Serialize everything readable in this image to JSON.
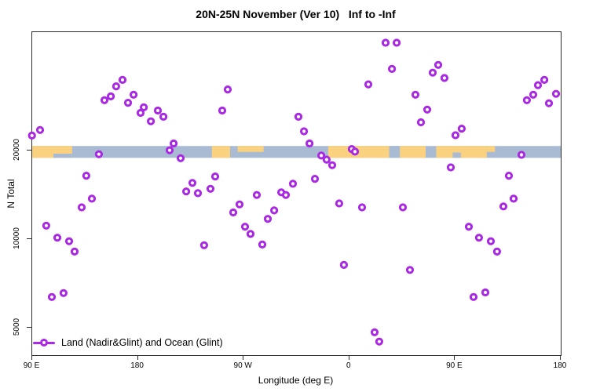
{
  "title": "20N-25N November (Ver 10)   Inf to -Inf",
  "axes": {
    "x_label": "Longitude (deg E)",
    "y_label": "N Total"
  },
  "legend": {
    "label": "Land (Nadir&Glint) and Ocean (Glint)"
  },
  "colors": {
    "marker": "#A928E3",
    "land": "#FAD27F",
    "ocean": "#A8BBD3",
    "axis": "#2b2b2b"
  },
  "chart_data": {
    "type": "scatter",
    "title": "20N-25N November (Ver 10)   Inf to -Inf",
    "xlabel": "Longitude (deg E)",
    "ylabel": "N Total",
    "x_axis": {
      "note": "extended longitude axis, degrees east of 90E start; wraps 90E>180>90W>0>90E>180",
      "range": [
        90,
        540
      ],
      "ticks": [
        {
          "v": 90,
          "label": "90 E"
        },
        {
          "v": 180,
          "label": "180"
        },
        {
          "v": 270,
          "label": "90 W"
        },
        {
          "v": 360,
          "label": "0"
        },
        {
          "v": 450,
          "label": "90 E"
        },
        {
          "v": 540,
          "label": "180"
        }
      ]
    },
    "y_axis": {
      "scale": "log",
      "range": [
        4030,
        50400
      ],
      "ticks": [
        {
          "v": 5000,
          "label": "5000"
        },
        {
          "v": 10000,
          "label": "10000"
        },
        {
          "v": 20000,
          "label": "20000"
        }
      ]
    },
    "legend_entries": [
      "Land (Nadir&Glint) and Ocean (Glint)"
    ],
    "map_strip": {
      "note": "world coastline band for 20N-25N drawn across plot at N~20000",
      "n_range": [
        18860,
        20690
      ],
      "land_segments": [
        {
          "from": 90,
          "to": 124
        },
        {
          "from": 243,
          "to": 258.5
        },
        {
          "from": 265,
          "to": 287,
          "h": 0.5,
          "anchor": "top"
        },
        {
          "from": 342,
          "to": 394
        },
        {
          "from": 403,
          "to": 425
        },
        {
          "from": 434,
          "to": 477
        },
        {
          "from": 477,
          "to": 484,
          "h": 0.5,
          "anchor": "top"
        }
      ],
      "ocean_patches": [
        {
          "from": 108,
          "to": 124,
          "h": 0.35,
          "anchor": "bottom"
        },
        {
          "from": 448,
          "to": 455,
          "h": 0.45,
          "anchor": "bottom"
        },
        {
          "from": 394,
          "to": 403,
          "h": 1,
          "anchor": "top"
        }
      ]
    },
    "points": [
      [
        89.8,
        22450
      ],
      [
        96.7,
        23450
      ],
      [
        151.5,
        29600
      ],
      [
        156.9,
        30500
      ],
      [
        161.5,
        33000
      ],
      [
        166.9,
        34700
      ],
      [
        171.6,
        29000
      ],
      [
        176.3,
        30900
      ],
      [
        182.3,
        26800
      ],
      [
        185.0,
        28000
      ],
      [
        191.0,
        25100
      ],
      [
        197.0,
        27300
      ],
      [
        201.7,
        26000
      ],
      [
        210.4,
        21100
      ],
      [
        207.0,
        20000
      ],
      [
        216.4,
        18800
      ],
      [
        146.8,
        19400
      ],
      [
        136.1,
        16400
      ],
      [
        245.8,
        16300
      ],
      [
        226.4,
        15500
      ],
      [
        221.1,
        14500
      ],
      [
        231.1,
        14300
      ],
      [
        241.8,
        14800
      ],
      [
        256.5,
        32200
      ],
      [
        251.8,
        27300
      ],
      [
        390.9,
        46400
      ],
      [
        400.3,
        46400
      ],
      [
        376.2,
        33500
      ],
      [
        316.7,
        26000
      ],
      [
        321.4,
        23200
      ],
      [
        326.1,
        21100
      ],
      [
        362.1,
        20200
      ],
      [
        364.8,
        19800
      ],
      [
        336.1,
        19200
      ],
      [
        340.7,
        18600
      ],
      [
        345.4,
        17800
      ],
      [
        330.7,
        16000
      ],
      [
        312.0,
        15400
      ],
      [
        302.0,
        14400
      ],
      [
        306.0,
        14100
      ],
      [
        281.2,
        14100
      ],
      [
        396.3,
        37800
      ],
      [
        435.7,
        39000
      ],
      [
        431.0,
        36700
      ],
      [
        441.0,
        35200
      ],
      [
        416.3,
        30900
      ],
      [
        426.3,
        27500
      ],
      [
        421.0,
        24900
      ],
      [
        455.7,
        23700
      ],
      [
        450.4,
        22500
      ],
      [
        526.0,
        34700
      ],
      [
        520.6,
        33300
      ],
      [
        516.6,
        30900
      ],
      [
        511.2,
        29600
      ],
      [
        536.0,
        31100
      ],
      [
        530.0,
        28900
      ],
      [
        506.6,
        19300
      ],
      [
        446.4,
        17500
      ],
      [
        495.9,
        16400
      ],
      [
        140.8,
        13700
      ],
      [
        132.1,
        12800
      ],
      [
        102.0,
        11100
      ],
      [
        111.4,
        10100
      ],
      [
        121.4,
        9820
      ],
      [
        126.1,
        9060
      ],
      [
        236.4,
        9520
      ],
      [
        116.7,
        6550
      ],
      [
        106.7,
        6350
      ],
      [
        266.5,
        13100
      ],
      [
        261.2,
        12300
      ],
      [
        296.0,
        12500
      ],
      [
        290.6,
        11700
      ],
      [
        271.2,
        11000
      ],
      [
        275.9,
        10400
      ],
      [
        285.9,
        9570
      ],
      [
        351.4,
        13200
      ],
      [
        370.8,
        12800
      ],
      [
        355.4,
        8160
      ],
      [
        381.5,
        4820
      ],
      [
        385.5,
        4480
      ],
      [
        405.6,
        12800
      ],
      [
        491.2,
        12900
      ],
      [
        499.9,
        13700
      ],
      [
        461.8,
        11000
      ],
      [
        470.4,
        10100
      ],
      [
        480.5,
        9820
      ],
      [
        485.8,
        9060
      ],
      [
        411.6,
        7850
      ],
      [
        475.8,
        6580
      ],
      [
        465.8,
        6350
      ]
    ]
  }
}
